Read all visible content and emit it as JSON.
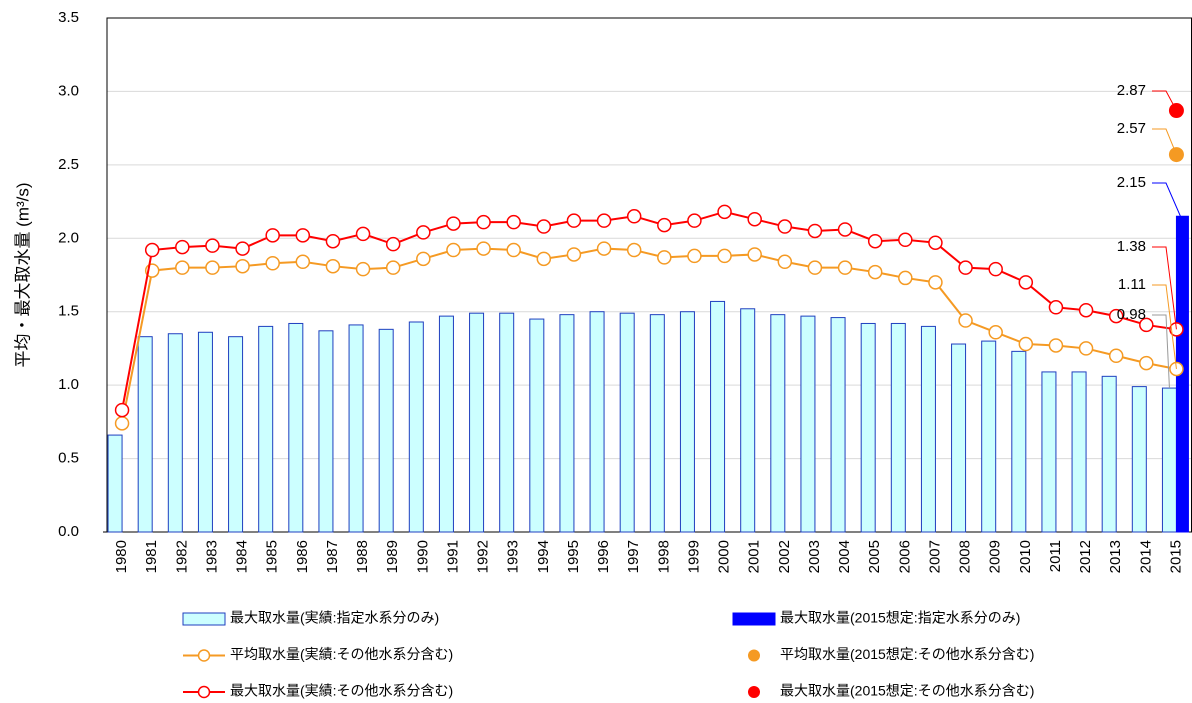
{
  "chart_data": {
    "type": "bar",
    "y_label": "平均・最大取水量 (m³/s)",
    "categories": [
      "1980",
      "1981",
      "1982",
      "1983",
      "1984",
      "1985",
      "1986",
      "1987",
      "1988",
      "1989",
      "1990",
      "1991",
      "1992",
      "1993",
      "1994",
      "1995",
      "1996",
      "1997",
      "1998",
      "1999",
      "2000",
      "2001",
      "2002",
      "2003",
      "2004",
      "2005",
      "2006",
      "2007",
      "2008",
      "2009",
      "2010",
      "2011",
      "2012",
      "2013",
      "2014",
      "2015"
    ],
    "ylim": [
      0,
      3.5
    ],
    "yticks": [
      {
        "value": 0,
        "label": "0.0"
      },
      0.5,
      {
        "value": 1,
        "label": "1.0"
      },
      1.5,
      {
        "value": 2,
        "label": "2.0"
      },
      2.5,
      {
        "value": 3,
        "label": "3.0"
      },
      3.5
    ],
    "grid": true,
    "series": [
      {
        "name": "最大取水量(実績:指定水系分のみ)",
        "type": "bar",
        "color": "#ccffff",
        "edge_color": "#1f3fbf",
        "label_color": "#00a0e0",
        "values": [
          0.66,
          1.33,
          1.35,
          1.36,
          1.33,
          1.4,
          1.42,
          1.37,
          1.41,
          1.38,
          1.43,
          1.47,
          1.49,
          1.49,
          1.45,
          1.48,
          1.5,
          1.49,
          1.48,
          1.5,
          1.57,
          1.52,
          1.48,
          1.47,
          1.46,
          1.42,
          1.42,
          1.4,
          1.28,
          1.3,
          1.23,
          1.09,
          1.09,
          1.06,
          0.99,
          0.98
        ]
      },
      {
        "name": "最大取水量(2015想定:指定水系分のみ)",
        "type": "bar",
        "color": "#0000ff",
        "edge_color": "#0000ff",
        "label_color": "#0000ff",
        "values": [
          null,
          null,
          null,
          null,
          null,
          null,
          null,
          null,
          null,
          null,
          null,
          null,
          null,
          null,
          null,
          null,
          null,
          null,
          null,
          null,
          null,
          null,
          null,
          null,
          null,
          null,
          null,
          null,
          null,
          null,
          null,
          null,
          null,
          null,
          null,
          2.15
        ]
      },
      {
        "name": "平均取水量(実績:その他水系分含む)",
        "type": "line",
        "color": "#f59a23",
        "label_color": "#f59a23",
        "values": [
          0.74,
          1.78,
          1.8,
          1.8,
          1.81,
          1.83,
          1.84,
          1.81,
          1.79,
          1.8,
          1.86,
          1.92,
          1.93,
          1.92,
          1.86,
          1.89,
          1.93,
          1.92,
          1.87,
          1.88,
          1.88,
          1.89,
          1.84,
          1.8,
          1.8,
          1.77,
          1.73,
          1.7,
          1.44,
          1.36,
          1.28,
          1.27,
          1.25,
          1.2,
          1.15,
          1.11
        ]
      },
      {
        "name": "平均取水量(2015想定:その他水系分含む)",
        "type": "scatter",
        "color": "#f59a23",
        "label_color": "#f59a23",
        "values": [
          null,
          null,
          null,
          null,
          null,
          null,
          null,
          null,
          null,
          null,
          null,
          null,
          null,
          null,
          null,
          null,
          null,
          null,
          null,
          null,
          null,
          null,
          null,
          null,
          null,
          null,
          null,
          null,
          null,
          null,
          null,
          null,
          null,
          null,
          null,
          2.57
        ]
      },
      {
        "name": "最大取水量(実績:その他水系分含む)",
        "type": "line",
        "color": "#ff0000",
        "label_color": "#ff0000",
        "values": [
          0.83,
          1.92,
          1.94,
          1.95,
          1.93,
          2.02,
          2.02,
          1.98,
          2.03,
          1.96,
          2.04,
          2.1,
          2.11,
          2.11,
          2.08,
          2.12,
          2.12,
          2.15,
          2.09,
          2.12,
          2.18,
          2.13,
          2.08,
          2.05,
          2.06,
          1.98,
          1.99,
          1.97,
          1.8,
          1.79,
          1.7,
          1.53,
          1.51,
          1.47,
          1.41,
          1.38
        ]
      },
      {
        "name": "最大取水量(2015想定:その他水系分含む)",
        "type": "scatter",
        "color": "#ff0000",
        "label_color": "#ff0000",
        "values": [
          null,
          null,
          null,
          null,
          null,
          null,
          null,
          null,
          null,
          null,
          null,
          null,
          null,
          null,
          null,
          null,
          null,
          null,
          null,
          null,
          null,
          null,
          null,
          null,
          null,
          null,
          null,
          null,
          null,
          null,
          null,
          null,
          null,
          null,
          null,
          2.87
        ]
      }
    ]
  }
}
